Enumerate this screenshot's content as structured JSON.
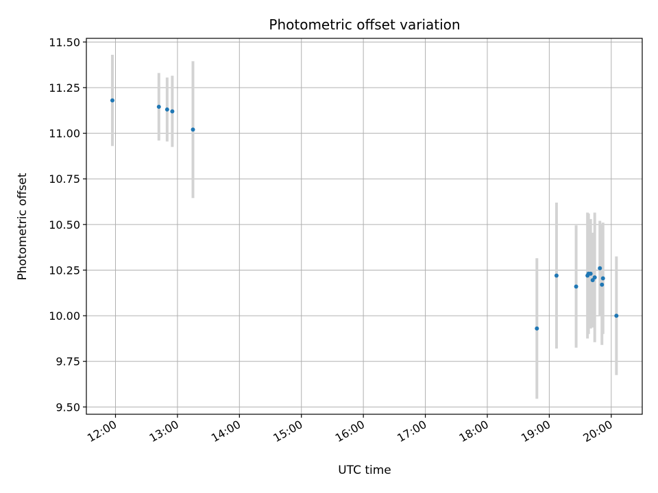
{
  "chart_data": {
    "type": "scatter",
    "title": "Photometric offset variation",
    "xlabel": "UTC time",
    "ylabel": "Photometric offset",
    "x_tick_labels": [
      "12:00",
      "13:00",
      "14:00",
      "15:00",
      "16:00",
      "17:00",
      "18:00",
      "19:00",
      "20:00"
    ],
    "x_ticks_hours": [
      12,
      13,
      14,
      15,
      16,
      17,
      18,
      19,
      20
    ],
    "xlim_hours": [
      11.53,
      20.5
    ],
    "y_tick_labels": [
      "9.50",
      "9.75",
      "10.00",
      "10.25",
      "10.50",
      "10.75",
      "11.00",
      "11.25",
      "11.50"
    ],
    "y_ticks": [
      9.5,
      9.75,
      10.0,
      10.25,
      10.5,
      10.75,
      11.0,
      11.25,
      11.5
    ],
    "ylim": [
      9.46,
      11.52
    ],
    "grid": true,
    "marker_color": "#1f77b4",
    "errorbar_color": "#d3d3d3",
    "points": [
      {
        "t": "11:57",
        "y": 11.18,
        "err": 0.25
      },
      {
        "t": "12:42",
        "y": 11.145,
        "err": 0.185
      },
      {
        "t": "12:50",
        "y": 11.13,
        "err": 0.175
      },
      {
        "t": "12:55",
        "y": 11.12,
        "err": 0.195
      },
      {
        "t": "13:15",
        "y": 11.02,
        "err": 0.375
      },
      {
        "t": "18:48",
        "y": 9.93,
        "err": 0.385
      },
      {
        "t": "19:07",
        "y": 10.22,
        "err": 0.4
      },
      {
        "t": "19:26",
        "y": 10.16,
        "err": 0.335
      },
      {
        "t": "19:37",
        "y": 10.22,
        "err": 0.345
      },
      {
        "t": "19:38",
        "y": 10.23,
        "err": 0.33
      },
      {
        "t": "19:40",
        "y": 10.23,
        "err": 0.3
      },
      {
        "t": "19:42",
        "y": 10.195,
        "err": 0.26
      },
      {
        "t": "19:44",
        "y": 10.21,
        "err": 0.355
      },
      {
        "t": "19:49",
        "y": 10.26,
        "err": 0.26
      },
      {
        "t": "19:51",
        "y": 10.17,
        "err": 0.33
      },
      {
        "t": "19:52",
        "y": 10.205,
        "err": 0.305
      },
      {
        "t": "20:05",
        "y": 10.0,
        "err": 0.325
      }
    ]
  }
}
